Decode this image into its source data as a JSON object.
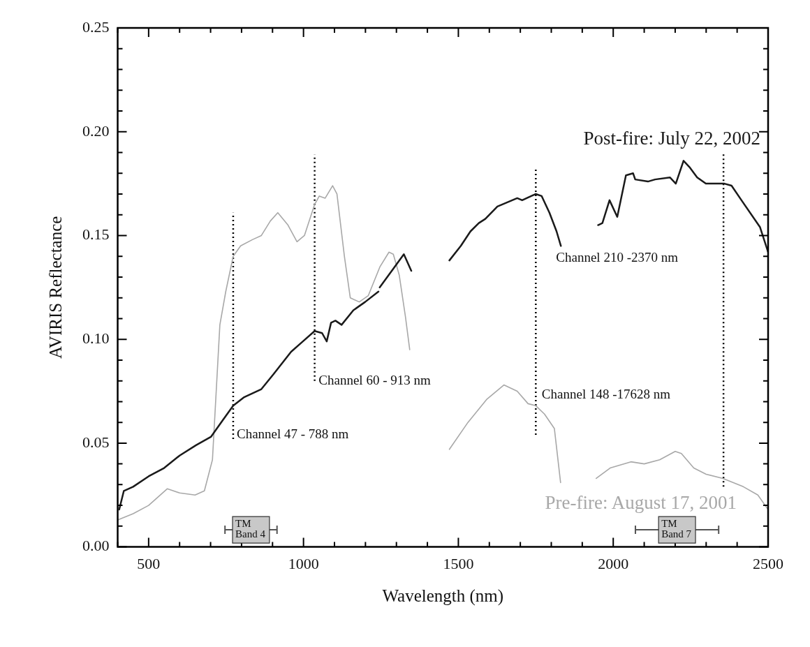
{
  "chart_data": {
    "type": "line",
    "xlabel": "Wavelength (nm)",
    "ylabel": "AVIRIS Reflectance",
    "xlim": [
      400,
      2500
    ],
    "ylim": [
      0,
      0.25
    ],
    "xticks": [
      {
        "value": 400,
        "label": null
      },
      500,
      {
        "value": 600,
        "label": null
      },
      {
        "value": 700,
        "label": null
      },
      {
        "value": 800,
        "label": null
      },
      {
        "value": 900,
        "label": null
      },
      1000,
      {
        "value": 1100,
        "label": null
      },
      {
        "value": 1200,
        "label": null
      },
      {
        "value": 1300,
        "label": null
      },
      {
        "value": 1400,
        "label": null
      },
      1500,
      {
        "value": 1600,
        "label": null
      },
      {
        "value": 1700,
        "label": null
      },
      {
        "value": 1800,
        "label": null
      },
      {
        "value": 1900,
        "label": null
      },
      2000,
      {
        "value": 2100,
        "label": null
      },
      {
        "value": 2200,
        "label": null
      },
      {
        "value": 2300,
        "label": null
      },
      {
        "value": 2400,
        "label": null
      },
      2500
    ],
    "yticks": [
      {
        "value": 0,
        "label": "0.00"
      },
      {
        "value": 0.01,
        "label": null
      },
      {
        "value": 0.02,
        "label": null
      },
      {
        "value": 0.03,
        "label": null
      },
      {
        "value": 0.04,
        "label": null
      },
      {
        "value": 0.05,
        "label": "0.05"
      },
      {
        "value": 0.06,
        "label": null
      },
      {
        "value": 0.07,
        "label": null
      },
      {
        "value": 0.08,
        "label": null
      },
      {
        "value": 0.09,
        "label": null
      },
      {
        "value": 0.1,
        "label": "0.10"
      },
      {
        "value": 0.11,
        "label": null
      },
      {
        "value": 0.12,
        "label": null
      },
      {
        "value": 0.13,
        "label": null
      },
      {
        "value": 0.14,
        "label": null
      },
      {
        "value": 0.15,
        "label": "0.15"
      },
      {
        "value": 0.16,
        "label": null
      },
      {
        "value": 0.17,
        "label": null
      },
      {
        "value": 0.18,
        "label": null
      },
      {
        "value": 0.19,
        "label": null
      },
      {
        "value": 0.2,
        "label": "0.20"
      },
      {
        "value": 0.21,
        "label": null
      },
      {
        "value": 0.22,
        "label": null
      },
      {
        "value": 0.23,
        "label": null
      },
      {
        "value": 0.24,
        "label": null
      },
      {
        "value": 0.25,
        "label": "0.25"
      }
    ],
    "grid": false,
    "legend": false,
    "marker": "none",
    "series": [
      {
        "name": "Post-fire: July 22, 2002",
        "color": "#1a1a1a",
        "x": [
          405,
          420,
          450,
          500,
          550,
          600,
          653,
          701,
          739,
          773,
          807,
          864,
          902,
          960,
          998,
          1036,
          1060,
          1075,
          1089,
          1103,
          1123,
          1161,
          1199,
          1242,
          1244,
          1246,
          1290,
          1324,
          1348,
          1400,
          1471,
          1508,
          1539,
          1566,
          1587,
          1626,
          1658,
          1690,
          1706,
          1750,
          1769,
          1794,
          1817,
          1831,
          1900,
          1951,
          1965,
          1988,
          2013,
          2041,
          2064,
          2071,
          2112,
          2135,
          2183,
          2202,
          2227,
          2246,
          2271,
          2299,
          2359,
          2382,
          2414,
          2474,
          2500
        ],
        "values": [
          0.018,
          0.027,
          0.029,
          0.034,
          0.038,
          0.044,
          0.049,
          0.053,
          0.061,
          0.068,
          0.072,
          0.076,
          0.083,
          0.094,
          0.099,
          0.104,
          0.103,
          0.099,
          0.108,
          0.109,
          0.107,
          0.114,
          0.118,
          0.123,
          null,
          0.125,
          0.134,
          0.141,
          0.133,
          null,
          0.138,
          0.145,
          0.152,
          0.156,
          0.158,
          0.164,
          0.166,
          0.168,
          0.167,
          0.17,
          0.169,
          0.161,
          0.152,
          0.145,
          null,
          0.155,
          0.156,
          0.167,
          0.159,
          0.179,
          0.18,
          0.177,
          0.176,
          0.177,
          0.178,
          0.175,
          0.186,
          0.183,
          0.178,
          0.175,
          0.175,
          0.174,
          0.167,
          0.154,
          0.142
        ]
      },
      {
        "name": "Pre-fire: August 17, 2001",
        "color": "#a8a8a8",
        "x": [
          400,
          450,
          500,
          560,
          600,
          650,
          680,
          706,
          730,
          749,
          773,
          797,
          835,
          864,
          893,
          917,
          950,
          979,
          1003,
          1036,
          1051,
          1070,
          1094,
          1108,
          1132,
          1151,
          1180,
          1209,
          1247,
          1276,
          1290,
          1309,
          1329,
          1343,
          1400,
          1471,
          1531,
          1591,
          1647,
          1690,
          1725,
          1750,
          1778,
          1810,
          1830,
          1900,
          1945,
          1990,
          2057,
          2100,
          2150,
          2200,
          2220,
          2260,
          2300,
          2354,
          2420,
          2467,
          2500
        ],
        "values": [
          0.013,
          0.016,
          0.02,
          0.028,
          0.026,
          0.025,
          0.027,
          0.042,
          0.107,
          0.123,
          0.14,
          0.145,
          0.148,
          0.15,
          0.157,
          0.161,
          0.155,
          0.147,
          0.15,
          0.165,
          0.169,
          0.168,
          0.174,
          0.17,
          0.14,
          0.12,
          0.118,
          0.121,
          0.135,
          0.142,
          0.141,
          0.131,
          0.111,
          0.095,
          null,
          0.047,
          0.06,
          0.071,
          0.078,
          0.075,
          0.069,
          0.068,
          0.064,
          0.057,
          0.031,
          null,
          0.033,
          0.038,
          0.041,
          0.04,
          0.042,
          0.046,
          0.045,
          0.038,
          0.035,
          0.033,
          0.029,
          0.025,
          0.018
        ]
      },
      {
        "color": "#000000",
        "line_style": "dotted",
        "x": [
          773,
          773
        ],
        "values": [
          0.052,
          0.161
        ]
      },
      {
        "color": "#000000",
        "line_style": "dotted",
        "x": [
          1036,
          1036
        ],
        "values": [
          0.08,
          0.189
        ]
      },
      {
        "color": "#000000",
        "line_style": "dotted",
        "x": [
          1750,
          1750
        ],
        "values": [
          0.054,
          0.183
        ]
      },
      {
        "color": "#000000",
        "line_style": "dotted",
        "x": [
          2356,
          2356
        ],
        "values": [
          0.029,
          0.19
        ]
      }
    ],
    "annotations": [
      "Channel 47 - 788 nm",
      "Channel 60 - 913 nm",
      "Channel 148 -17628 nm",
      "Channel 210 -2370 nm",
      "TM\nBand 4",
      "TM\nBand 7"
    ]
  }
}
